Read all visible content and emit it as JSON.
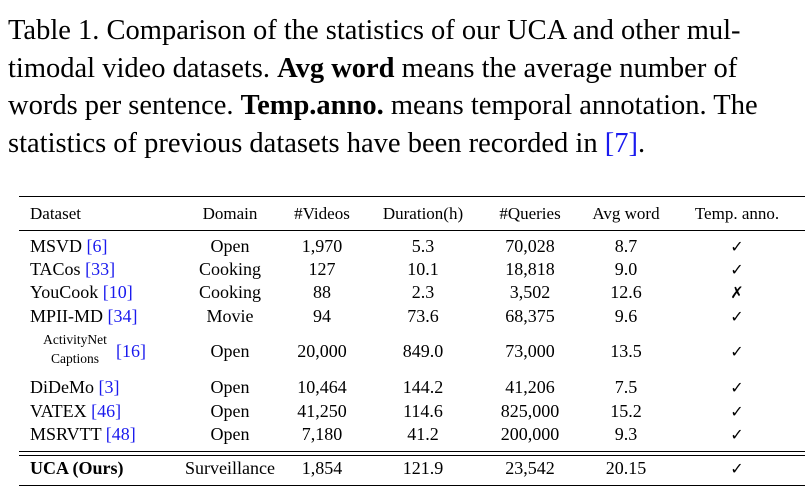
{
  "caption": {
    "prefix": "Table 1. Comparison of the statistics of our UCA and other mul-timodal video datasets. ",
    "avg_word_bold": "Avg word",
    "mid1": " means the average number of words per sentence. ",
    "temp_bold": "Temp.anno.",
    "mid2": " means temporal annotation. The statistics of previous datasets have been recorded in ",
    "ref_open": "[",
    "ref": "7",
    "ref_close": "]",
    "end": "."
  },
  "table": {
    "headers": [
      "Dataset",
      "Domain",
      "#Videos",
      "Duration(h)",
      "#Queries",
      "Avg word",
      "Temp. anno."
    ],
    "rows": [
      {
        "name": "MSVD",
        "ref": "6",
        "domain": "Open",
        "videos": "1,970",
        "duration": "5.3",
        "queries": "70,028",
        "avg": "8.7",
        "temp": "✓"
      },
      {
        "name": "TACos",
        "ref": "33",
        "domain": "Cooking",
        "videos": "127",
        "duration": "10.1",
        "queries": "18,818",
        "avg": "9.0",
        "temp": "✓"
      },
      {
        "name": "YouCook",
        "ref": "10",
        "domain": "Cooking",
        "videos": "88",
        "duration": "2.3",
        "queries": "3,502",
        "avg": "12.6",
        "temp": "✗"
      },
      {
        "name": "MPII-MD",
        "ref": "34",
        "domain": "Movie",
        "videos": "94",
        "duration": "73.6",
        "queries": "68,375",
        "avg": "9.6",
        "temp": "✓"
      },
      {
        "name_line1": "ActivityNet",
        "name_line2": "Captions",
        "ref": "16",
        "domain": "Open",
        "videos": "20,000",
        "duration": "849.0",
        "queries": "73,000",
        "avg": "13.5",
        "temp": "✓"
      },
      {
        "name": "DiDeMo",
        "ref": "3",
        "domain": "Open",
        "videos": "10,464",
        "duration": "144.2",
        "queries": "41,206",
        "avg": "7.5",
        "temp": "✓"
      },
      {
        "name": "VATEX",
        "ref": "46",
        "domain": "Open",
        "videos": "41,250",
        "duration": "114.6",
        "queries": "825,000",
        "avg": "15.2",
        "temp": "✓"
      },
      {
        "name": "MSRVTT",
        "ref": "48",
        "domain": "Open",
        "videos": "7,180",
        "duration": "41.2",
        "queries": "200,000",
        "avg": "9.3",
        "temp": "✓"
      }
    ],
    "ours": {
      "name": "UCA (Ours)",
      "domain": "Surveillance",
      "videos": "1,854",
      "duration": "121.9",
      "queries": "23,542",
      "avg": "20.15",
      "temp": "✓"
    }
  },
  "colors": {
    "reference_link": "#1a1aee",
    "text": "#000000"
  }
}
